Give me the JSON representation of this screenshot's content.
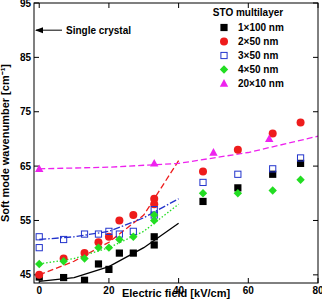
{
  "chart_data": {
    "type": "scatter",
    "xlabel": "Electric field [kV/cm]",
    "ylabel": "Soft mode wavenumber [cm⁻¹]",
    "xlim": [
      -1.5,
      80
    ],
    "ylim": [
      43.5,
      95
    ],
    "xticks": [
      0,
      20,
      40,
      60,
      80
    ],
    "yticks": [
      45,
      55,
      65,
      75,
      85,
      95
    ],
    "legend": "upper right",
    "legend_title": "STO multilayer",
    "annotations": [
      {
        "text": "Single crystal",
        "y": 90
      }
    ],
    "series": [
      {
        "name": "1×100 nm",
        "color": "#000000",
        "marker": "square",
        "x": [
          0,
          7,
          13,
          17,
          20,
          23,
          27,
          33,
          33,
          47,
          57,
          67,
          75
        ],
        "values": [
          44.6,
          44.5,
          44,
          47,
          46,
          49,
          49,
          50.5,
          52,
          58.5,
          61,
          63.5,
          65.5
        ]
      },
      {
        "name": "2×50 nm",
        "color": "#ee1c1c",
        "marker": "circle",
        "x": [
          0,
          7,
          13,
          17,
          20,
          23,
          27,
          33,
          33,
          47,
          57,
          67,
          75
        ],
        "values": [
          45,
          48,
          49,
          51,
          52,
          55,
          56,
          58,
          59,
          64,
          68,
          71,
          73
        ]
      },
      {
        "name": "3×50 nm",
        "color": "#2233cc",
        "marker": "square-open",
        "x": [
          0,
          0,
          7,
          13,
          17,
          20,
          23,
          27,
          33,
          33,
          47,
          57,
          67,
          75
        ],
        "values": [
          52,
          50,
          51.5,
          52.5,
          52.5,
          53,
          52.5,
          53,
          56,
          57,
          62,
          63.5,
          64.5,
          66.5
        ]
      },
      {
        "name": "4×50 nm",
        "color": "#22dd22",
        "marker": "diamond",
        "x": [
          0,
          7,
          13,
          17,
          20,
          23,
          27,
          33,
          33,
          47,
          57,
          67,
          75
        ],
        "values": [
          47,
          47.5,
          48,
          50,
          50,
          51.5,
          52,
          55,
          56,
          60,
          60,
          60.5,
          62.5
        ]
      },
      {
        "name": "20×10 nm",
        "color": "#ee22ee",
        "marker": "triangle",
        "x": [
          0,
          33,
          50,
          66
        ],
        "values": [
          64.5,
          65.5,
          67.5,
          70
        ]
      },
      {
        "type": "line",
        "color": "#000000",
        "line_style": "solid",
        "x": [
          0,
          10,
          20,
          30,
          40
        ],
        "values": [
          43.8,
          44.5,
          46.5,
          50,
          54.5
        ]
      },
      {
        "type": "line",
        "color": "#ee1c1c",
        "line_style": "dashed",
        "x": [
          0,
          10,
          20,
          30,
          40
        ],
        "values": [
          45,
          47.5,
          51,
          56,
          66
        ]
      },
      {
        "type": "line",
        "color": "#2233cc",
        "line_style": "dashdot",
        "x": [
          0,
          10,
          20,
          30,
          40
        ],
        "values": [
          51.5,
          52,
          53,
          55.5,
          59
        ]
      },
      {
        "type": "line",
        "color": "#22dd22",
        "line_style": "dotted",
        "x": [
          0,
          10,
          20,
          30,
          40
        ],
        "values": [
          47,
          48,
          50,
          53,
          58
        ]
      },
      {
        "type": "line",
        "color": "#ee22ee",
        "line_style": "dashed",
        "x": [
          0,
          20,
          40,
          60,
          80
        ],
        "values": [
          64.5,
          64.8,
          65.5,
          67.5,
          70.5
        ]
      }
    ]
  }
}
